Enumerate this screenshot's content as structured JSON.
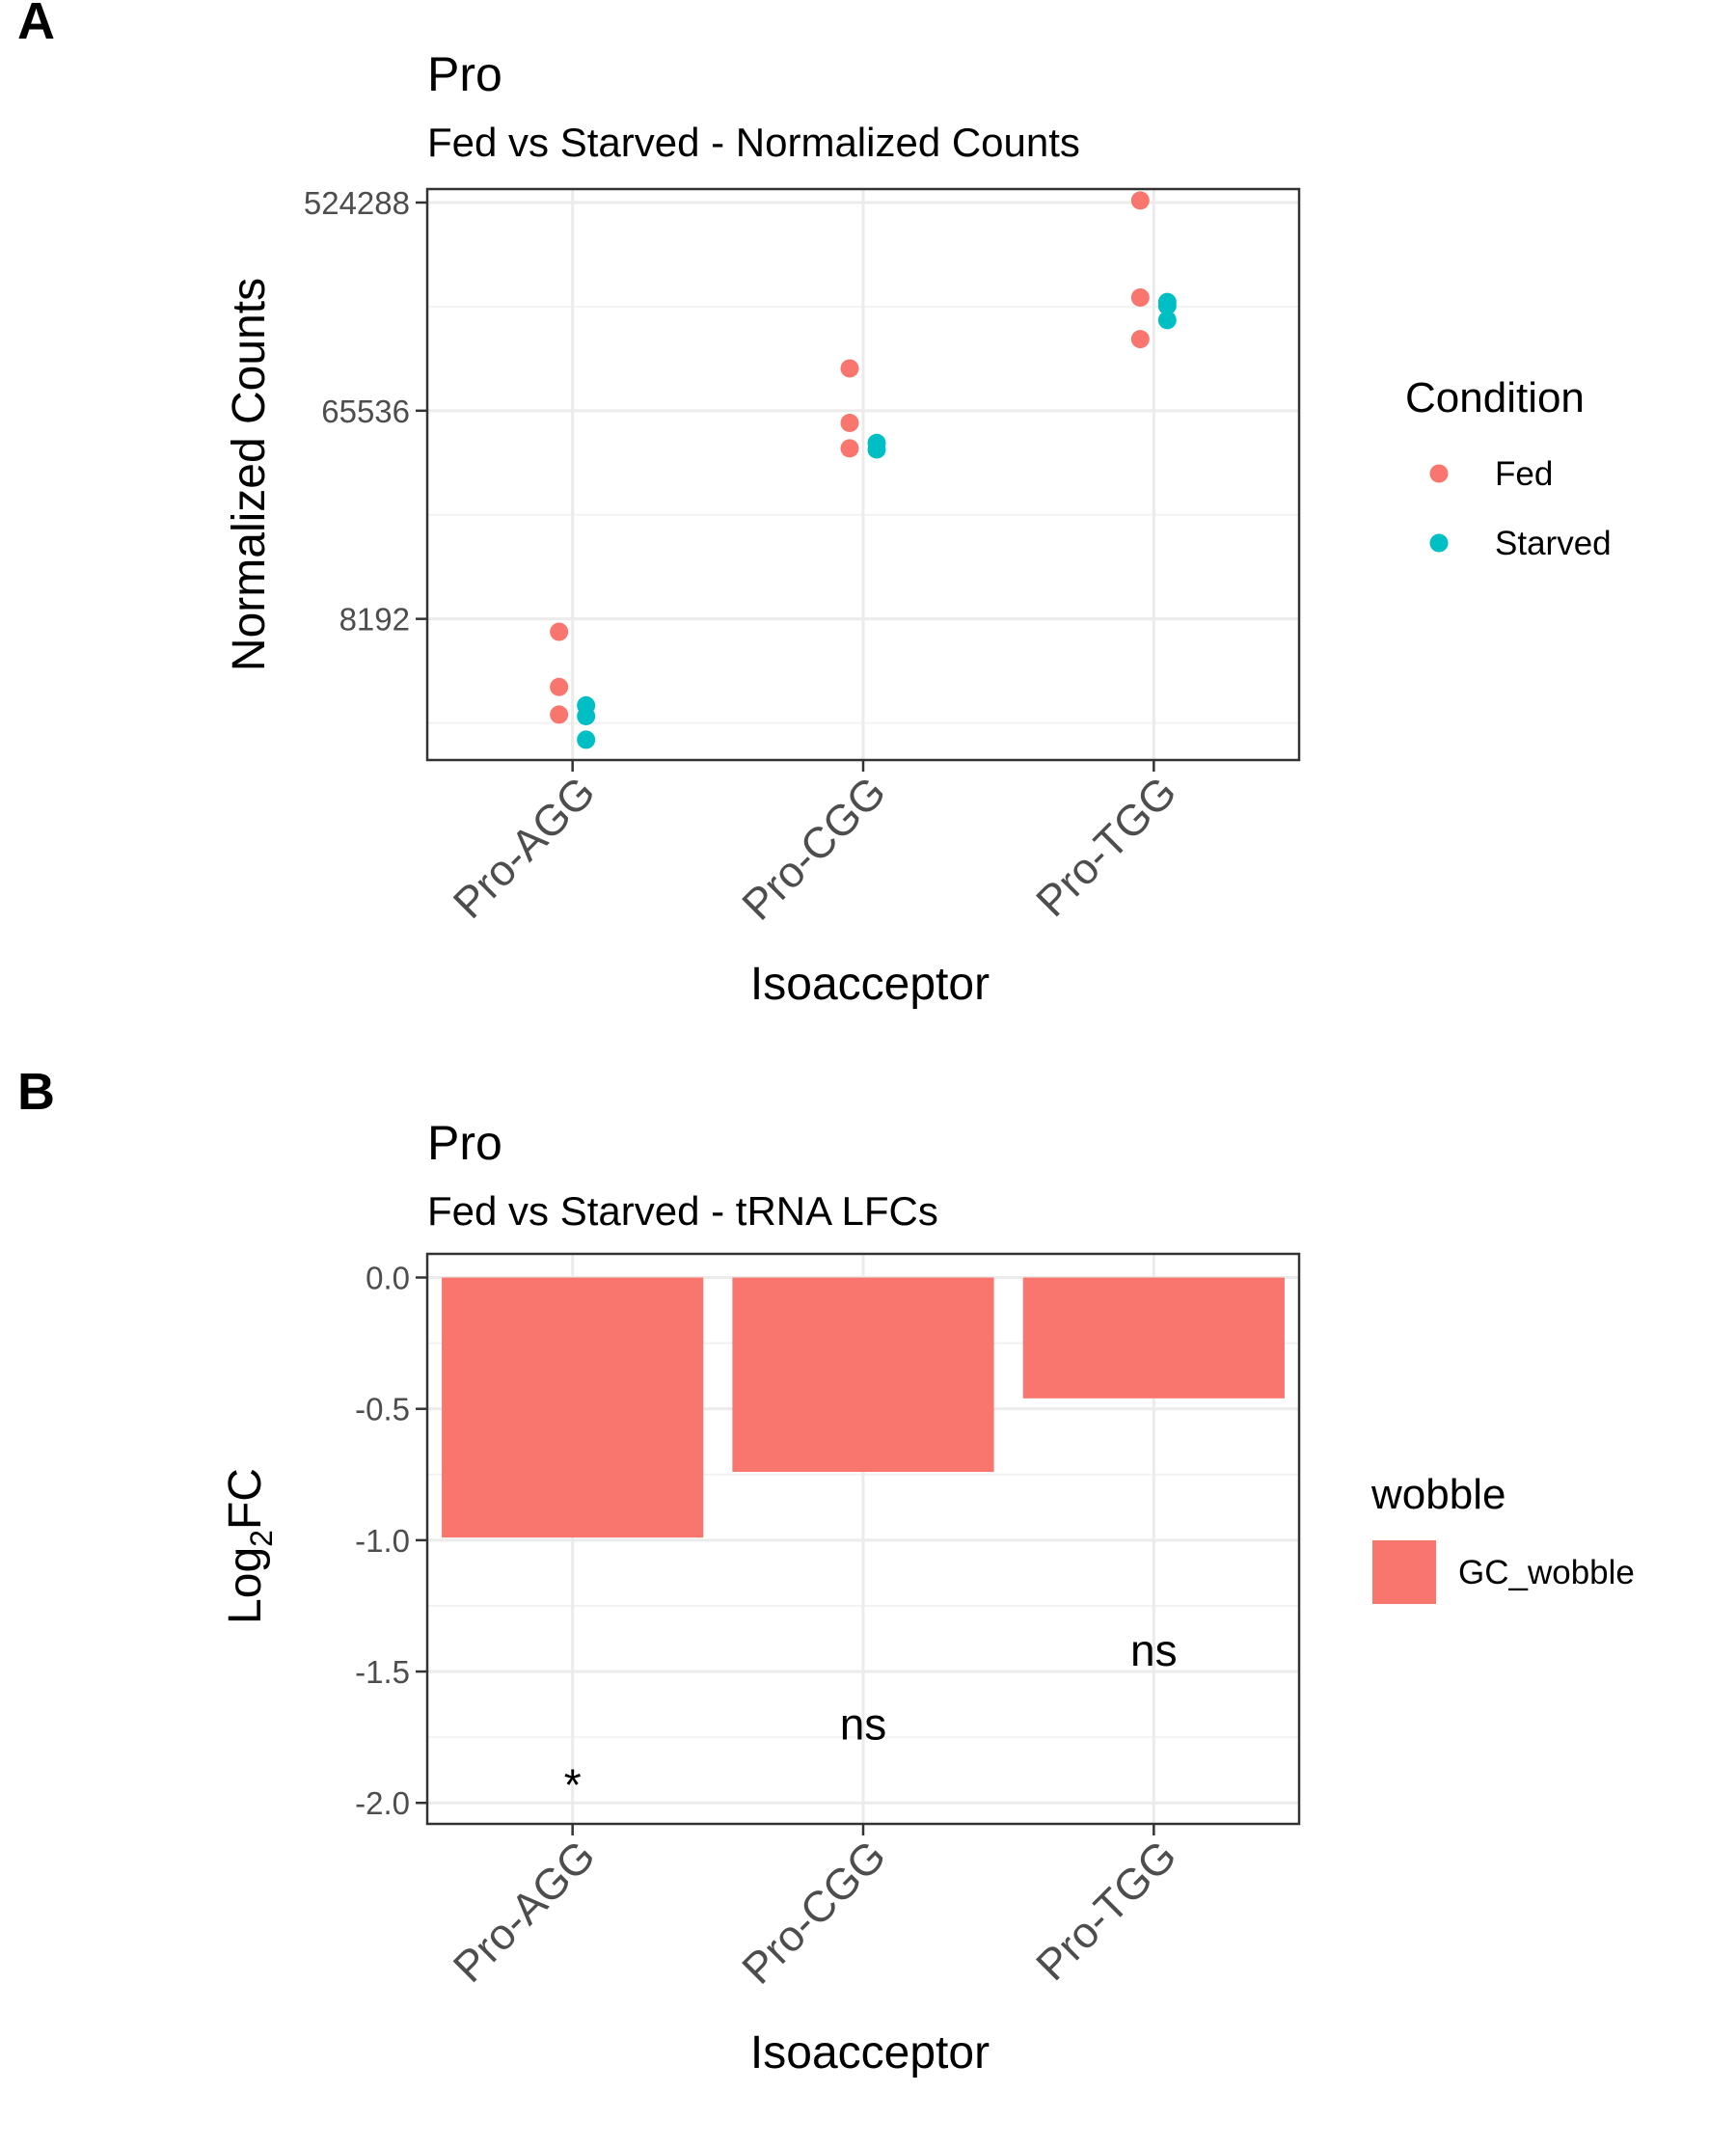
{
  "chart_data": [
    {
      "panel": "A",
      "type": "scatter",
      "title": "Pro",
      "subtitle": "Fed vs Starved - Normalized Counts",
      "xlabel": "Isoacceptor",
      "ylabel": "Normalized Counts",
      "categories": [
        "Pro-AGG",
        "Pro-CGG",
        "Pro-TGG"
      ],
      "y_scale": "log2",
      "ylim": [
        2000,
        600000
      ],
      "y_ticks": [
        {
          "value": 8192,
          "label": "8192"
        },
        {
          "value": 65536,
          "label": "65536"
        },
        {
          "value": 524288,
          "label": "524288"
        }
      ],
      "legend": {
        "title": "Condition",
        "position": "right"
      },
      "series": [
        {
          "name": "Fed",
          "color": "#F8766D",
          "points": [
            {
              "x": "Pro-AGG",
              "y": 7200
            },
            {
              "x": "Pro-AGG",
              "y": 4150
            },
            {
              "x": "Pro-AGG",
              "y": 3150
            },
            {
              "x": "Pro-CGG",
              "y": 100000
            },
            {
              "x": "Pro-CGG",
              "y": 58000
            },
            {
              "x": "Pro-CGG",
              "y": 45000
            },
            {
              "x": "Pro-TGG",
              "y": 535000
            },
            {
              "x": "Pro-TGG",
              "y": 203000
            },
            {
              "x": "Pro-TGG",
              "y": 134000
            }
          ]
        },
        {
          "name": "Starved",
          "color": "#00BFC4",
          "points": [
            {
              "x": "Pro-AGG",
              "y": 3450
            },
            {
              "x": "Pro-AGG",
              "y": 3100
            },
            {
              "x": "Pro-AGG",
              "y": 2450
            },
            {
              "x": "Pro-CGG",
              "y": 47500
            },
            {
              "x": "Pro-CGG",
              "y": 44500
            },
            {
              "x": "Pro-TGG",
              "y": 194000
            },
            {
              "x": "Pro-TGG",
              "y": 187000
            },
            {
              "x": "Pro-TGG",
              "y": 162000
            }
          ]
        }
      ]
    },
    {
      "panel": "B",
      "type": "bar",
      "title": "Pro",
      "subtitle": "Fed vs Starved - tRNA LFCs",
      "xlabel": "Isoacceptor",
      "ylabel": "Log2FC",
      "ylabel_parts": {
        "base": "Log",
        "sub": "2",
        "rest": "FC"
      },
      "categories": [
        "Pro-AGG",
        "Pro-CGG",
        "Pro-TGG"
      ],
      "values": [
        -0.99,
        -0.74,
        -0.46
      ],
      "ylim": [
        -2.08,
        0.09
      ],
      "y_ticks": [
        {
          "value": 0.0,
          "label": "0.0"
        },
        {
          "value": -0.5,
          "label": "-0.5"
        },
        {
          "value": -1.0,
          "label": "-1.0"
        },
        {
          "value": -1.5,
          "label": "-1.5"
        },
        {
          "value": -2.0,
          "label": "-2.0"
        }
      ],
      "annotations": [
        {
          "x": "Pro-AGG",
          "y": -1.88,
          "text": "*"
        },
        {
          "x": "Pro-CGG",
          "y": -1.7,
          "text": "ns"
        },
        {
          "x": "Pro-TGG",
          "y": -1.42,
          "text": "ns"
        }
      ],
      "legend": {
        "title": "wobble",
        "position": "right",
        "entries": [
          {
            "name": "GC_wobble",
            "color": "#F8766D"
          }
        ]
      },
      "series": [
        {
          "name": "GC_wobble",
          "color": "#F8766D",
          "values": [
            -0.99,
            -0.74,
            -0.46
          ]
        }
      ]
    }
  ]
}
